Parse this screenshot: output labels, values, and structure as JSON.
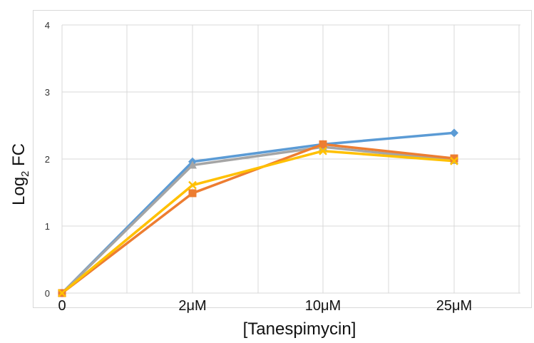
{
  "chart_data": {
    "type": "line",
    "title": "",
    "xlabel": "[Tanespimycin]",
    "ylabel_main": "Log",
    "ylabel_sub": "2",
    "ylabel_tail": " FC",
    "categories": [
      "0",
      "2μM",
      "10μM",
      "25μM"
    ],
    "ylim": [
      0,
      4
    ],
    "yticks": [
      "0",
      "1",
      "2",
      "3",
      "4"
    ],
    "grid": true,
    "legend": "none",
    "series": [
      {
        "color": "#5b9bd5",
        "marker": "diamond",
        "values": [
          0,
          1.96,
          2.22,
          2.39
        ]
      },
      {
        "color": "#a5a5a5",
        "marker": "triangle",
        "values": [
          0,
          1.91,
          2.18,
          1.98
        ]
      },
      {
        "color": "#ed7d31",
        "marker": "square",
        "values": [
          0,
          1.49,
          2.22,
          2.01
        ]
      },
      {
        "color": "#ffc000",
        "marker": "x",
        "values": [
          0,
          1.61,
          2.12,
          1.97
        ]
      }
    ]
  }
}
